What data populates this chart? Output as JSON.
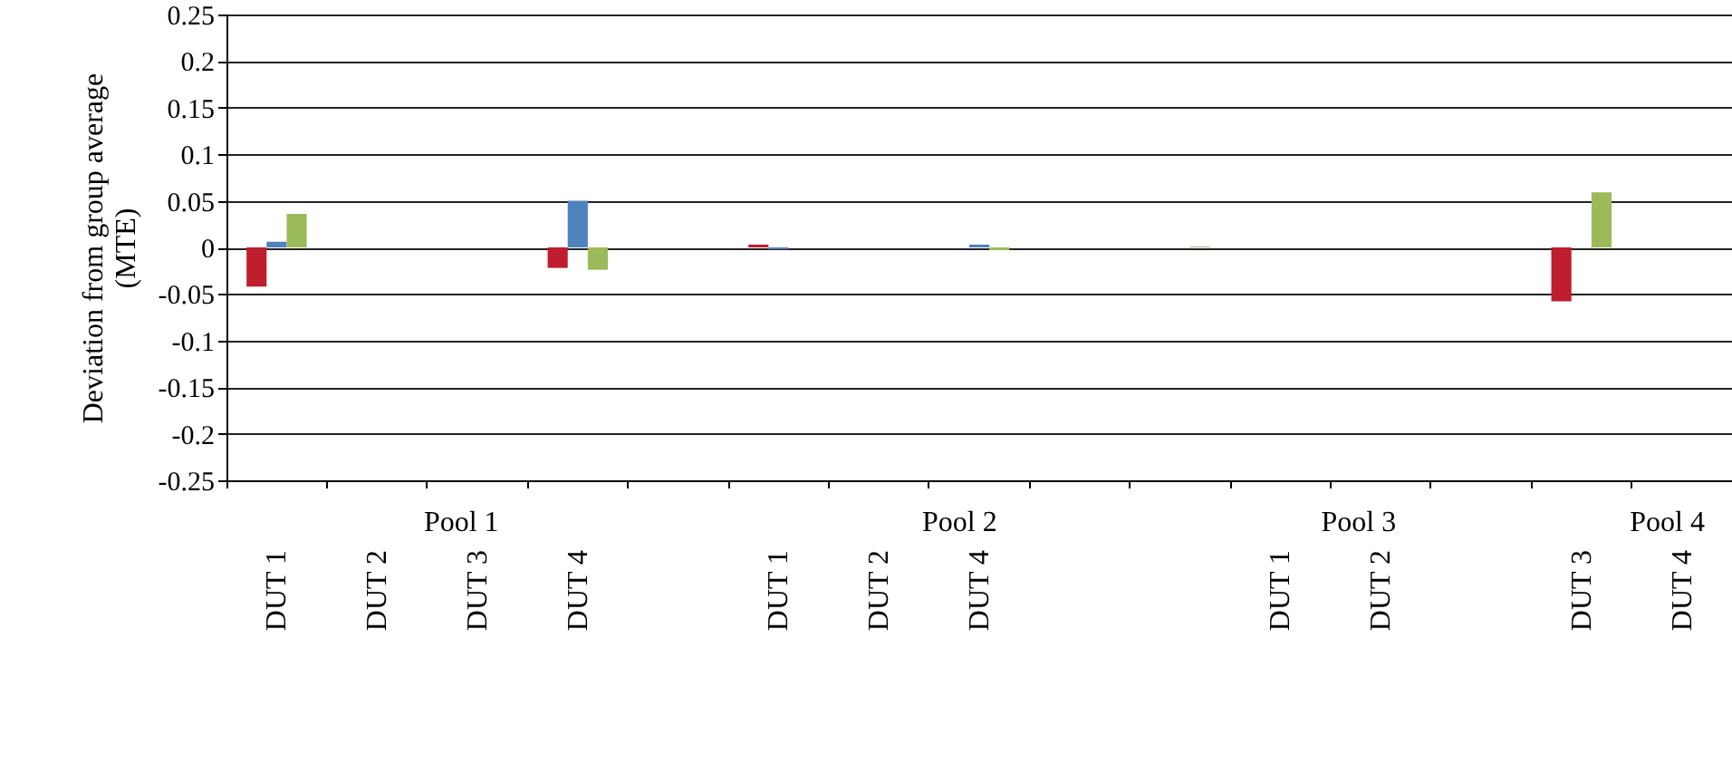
{
  "chart_data": {
    "type": "bar",
    "ylabel": "Deviation from group average\n(MTE)",
    "categories": [
      "DUT 1",
      "DUT 2",
      "DUT 3",
      "DUT 4",
      null,
      "DUT 1",
      "DUT 2",
      "DUT 4",
      null,
      null,
      "DUT 1",
      "DUT 2",
      null,
      "DUT 3",
      "DUT 4"
    ],
    "series": [
      {
        "color": "#be1e2d",
        "values": [
          -0.042,
          null,
          null,
          -0.022,
          null,
          0.003,
          null,
          null,
          null,
          null,
          null,
          null,
          null,
          -0.058,
          null
        ]
      },
      {
        "color": "#4f81bd",
        "values": [
          0.006,
          null,
          null,
          0.05,
          null,
          -0.002,
          null,
          0.003,
          null,
          null,
          null,
          null,
          null,
          null,
          null
        ]
      },
      {
        "color": "#9bbb59",
        "values": [
          0.036,
          null,
          null,
          -0.024,
          null,
          null,
          null,
          -0.003,
          null,
          0.001,
          null,
          null,
          null,
          0.059,
          null
        ]
      }
    ],
    "ylim": [
      -0.25,
      0.25
    ],
    "yticks": [
      -0.25,
      -0.2,
      -0.15,
      -0.1,
      -0.05,
      0,
      0.05,
      0.1,
      0.15,
      0.2,
      0.25
    ],
    "grid": "y",
    "annotations": [
      "Pool 1",
      "Pool 2",
      "Pool 3",
      "Pool 4"
    ]
  }
}
